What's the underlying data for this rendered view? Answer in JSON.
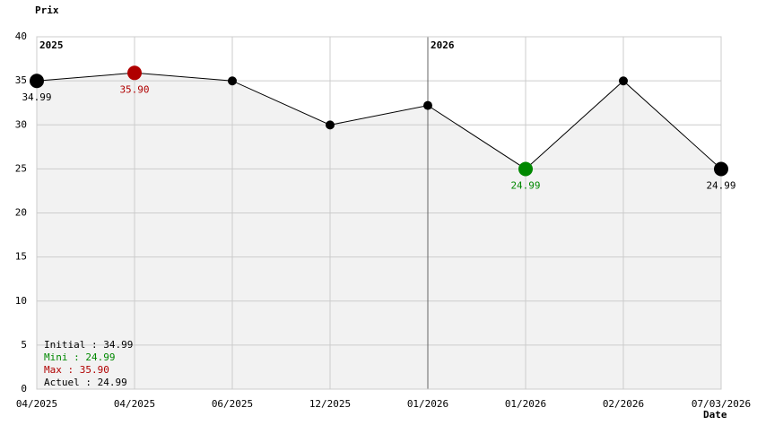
{
  "chart_data": {
    "type": "line",
    "y_label": "Prix",
    "x_label": "Date",
    "categories": [
      "04/2025",
      "04/2025",
      "06/2025",
      "12/2025",
      "01/2026",
      "01/2026",
      "02/2026",
      "07/03/2026"
    ],
    "series": [
      {
        "color": "#000000",
        "values": [
          34.99,
          35.9,
          34.99,
          29.99,
          32.2,
          24.99,
          34.99,
          24.99
        ],
        "value_labels": [
          "34.99",
          "35.90",
          null,
          null,
          null,
          "24.99",
          null,
          "24.99"
        ],
        "point_colors": [
          "#000000",
          "#b00000",
          "#000000",
          "#000000",
          "#000000",
          "#008800",
          "#000000",
          "#000000"
        ]
      }
    ],
    "area_color": "#f2f2f2",
    "ylim": [
      0,
      40
    ],
    "yticks": [
      0,
      5,
      10,
      15,
      20,
      25,
      30,
      35,
      40
    ],
    "grid": true,
    "annotations": [
      "2025",
      "2026"
    ],
    "summary": [
      {
        "text": "Initial : 34.99",
        "color": "#000000"
      },
      {
        "text": "Mini : 24.99",
        "color": "#008800"
      },
      {
        "text": "Max : 35.90",
        "color": "#b00000"
      },
      {
        "text": "Actuel : 24.99",
        "color": "#000000"
      }
    ]
  }
}
